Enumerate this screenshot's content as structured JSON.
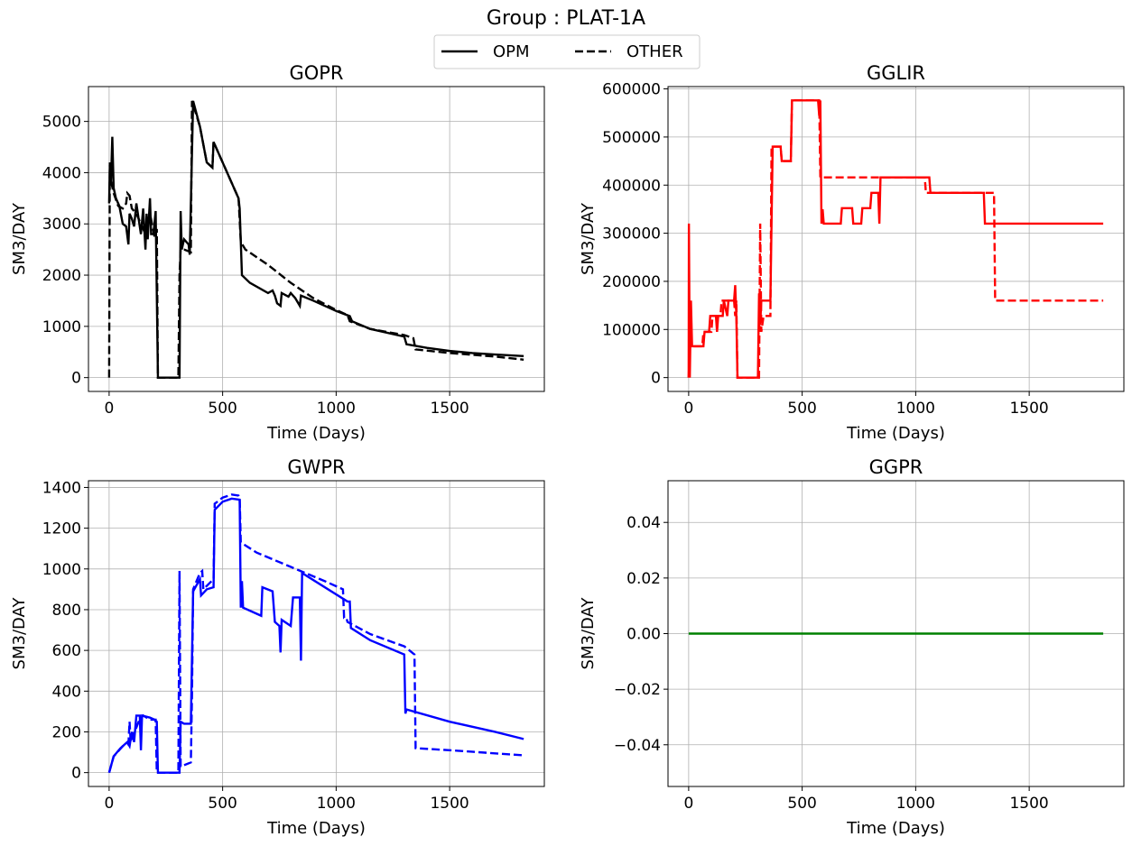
{
  "title": "Group : PLAT-1A",
  "chart_data": [
    {
      "type": "line",
      "title": "GOPR",
      "x_label": "Time (Days)",
      "y_label": "SM3/DAY",
      "xlim": [
        -91,
        1917
      ],
      "ylim": [
        -270,
        5680
      ],
      "xticks": [
        0,
        500,
        1000,
        1500
      ],
      "yticks": [
        0,
        1000,
        2000,
        3000,
        4000,
        5000
      ],
      "grid": true,
      "series": [
        {
          "name": "OPM",
          "color": "#000000",
          "dash": "solid",
          "x": [
            0,
            3,
            8,
            14,
            20,
            30,
            45,
            60,
            75,
            85,
            90,
            100,
            110,
            120,
            130,
            140,
            150,
            160,
            165,
            170,
            180,
            185,
            195,
            205,
            215,
            310,
            315,
            320,
            330,
            350,
            355,
            370,
            400,
            430,
            455,
            460,
            500,
            540,
            570,
            575,
            585,
            620,
            700,
            720,
            730,
            740,
            755,
            760,
            790,
            800,
            820,
            840,
            845,
            900,
            1000,
            1060,
            1070,
            1150,
            1300,
            1310,
            1400,
            1500,
            1600,
            1700,
            1826
          ],
          "values": [
            3400,
            4150,
            3800,
            4700,
            3700,
            3500,
            3350,
            3000,
            2950,
            2600,
            3200,
            3100,
            2950,
            3400,
            3100,
            2800,
            3300,
            2500,
            3200,
            2700,
            3500,
            2800,
            2800,
            3250,
            0,
            0,
            3250,
            2500,
            2700,
            2600,
            2400,
            5400,
            4900,
            4200,
            4100,
            4600,
            4200,
            3800,
            3500,
            3300,
            2000,
            1850,
            1650,
            1700,
            1600,
            1450,
            1400,
            1650,
            1580,
            1650,
            1550,
            1400,
            1600,
            1500,
            1300,
            1200,
            1100,
            950,
            800,
            650,
            580,
            520,
            480,
            450,
            420
          ]
        },
        {
          "name": "OTHER",
          "color": "#000000",
          "dash": "dashed",
          "x": [
            0,
            3,
            10,
            20,
            40,
            60,
            75,
            80,
            90,
            100,
            120,
            140,
            160,
            180,
            200,
            210,
            215,
            305,
            310,
            315,
            330,
            360,
            365,
            400,
            430,
            455,
            460,
            500,
            570,
            580,
            600,
            700,
            800,
            900,
            1000,
            1050,
            1060,
            1150,
            1300,
            1340,
            1350,
            1500,
            1700,
            1826
          ],
          "values": [
            0,
            4200,
            3800,
            3600,
            3350,
            3300,
            3400,
            3600,
            3550,
            3300,
            3200,
            3000,
            2800,
            3200,
            2750,
            2900,
            0,
            0,
            2000,
            2500,
            2500,
            2450,
            5400,
            4900,
            4200,
            4100,
            4600,
            4200,
            3500,
            2650,
            2500,
            2200,
            1850,
            1550,
            1320,
            1220,
            1100,
            950,
            830,
            770,
            550,
            480,
            410,
            350
          ]
        }
      ]
    },
    {
      "type": "line",
      "title": "GGLIR",
      "x_label": "Time (Days)",
      "y_label": "SM3/DAY",
      "xlim": [
        -91,
        1917
      ],
      "ylim": [
        -28800,
        604800
      ],
      "xticks": [
        0,
        500,
        1000,
        1500
      ],
      "yticks": [
        0,
        100000,
        200000,
        300000,
        400000,
        500000,
        600000
      ],
      "grid": true,
      "series": [
        {
          "name": "OPM",
          "color": "#ff0000",
          "dash": "solid",
          "x": [
            0,
            1,
            5,
            10,
            15,
            65,
            70,
            90,
            95,
            120,
            125,
            130,
            150,
            155,
            170,
            175,
            200,
            205,
            210,
            215,
            305,
            310,
            315,
            320,
            360,
            370,
            405,
            410,
            450,
            455,
            570,
            575,
            580,
            585,
            590,
            595,
            670,
            675,
            720,
            725,
            760,
            765,
            800,
            805,
            835,
            840,
            845,
            1060,
            1065,
            1300,
            1305,
            1826
          ],
          "values": [
            0,
            320000,
            0,
            160000,
            65000,
            65000,
            95000,
            95000,
            128000,
            128000,
            95000,
            128000,
            128000,
            160000,
            128000,
            160000,
            160000,
            192000,
            128000,
            0,
            0,
            175000,
            110000,
            160000,
            160000,
            480000,
            480000,
            450000,
            450000,
            576000,
            576000,
            544000,
            576000,
            320000,
            350000,
            320000,
            320000,
            352000,
            352000,
            320000,
            320000,
            352000,
            352000,
            384000,
            384000,
            320000,
            416000,
            416000,
            384000,
            384000,
            320000,
            320000
          ]
        },
        {
          "name": "OTHER",
          "color": "#ff0000",
          "dash": "dashed",
          "x": [
            0,
            5,
            60,
            65,
            100,
            105,
            140,
            145,
            200,
            205,
            210,
            215,
            310,
            315,
            320,
            330,
            360,
            365,
            405,
            410,
            450,
            455,
            575,
            580,
            1040,
            1045,
            1345,
            1350,
            1826
          ],
          "values": [
            0,
            65000,
            65000,
            95000,
            95000,
            128000,
            128000,
            160000,
            160000,
            128000,
            160000,
            0,
            0,
            320000,
            95000,
            128000,
            128000,
            480000,
            480000,
            450000,
            450000,
            576000,
            576000,
            416000,
            416000,
            384000,
            384000,
            160000,
            160000
          ]
        }
      ]
    },
    {
      "type": "line",
      "title": "GWPR",
      "x_label": "Time (Days)",
      "y_label": "SM3/DAY",
      "xlim": [
        -91,
        1917
      ],
      "ylim": [
        -68,
        1433
      ],
      "xticks": [
        0,
        500,
        1000,
        1500
      ],
      "yticks": [
        0,
        200,
        400,
        600,
        800,
        1000,
        1200,
        1400
      ],
      "grid": true,
      "series": [
        {
          "name": "OPM",
          "color": "#0000ff",
          "dash": "solid",
          "x": [
            0,
            20,
            50,
            80,
            90,
            100,
            110,
            120,
            135,
            140,
            145,
            180,
            200,
            210,
            215,
            310,
            315,
            330,
            360,
            370,
            400,
            405,
            430,
            460,
            465,
            500,
            540,
            575,
            580,
            585,
            590,
            650,
            670,
            675,
            720,
            730,
            750,
            755,
            760,
            800,
            810,
            840,
            845,
            850,
            1050,
            1060,
            1065,
            1150,
            1300,
            1305,
            1310,
            1500,
            1700,
            1826
          ],
          "values": [
            0,
            80,
            120,
            150,
            130,
            200,
            150,
            280,
            280,
            110,
            280,
            270,
            260,
            250,
            0,
            0,
            250,
            240,
            240,
            890,
            950,
            870,
            900,
            910,
            1290,
            1330,
            1345,
            1340,
            810,
            940,
            810,
            780,
            770,
            910,
            890,
            740,
            720,
            590,
            750,
            720,
            860,
            860,
            550,
            980,
            840,
            840,
            710,
            650,
            580,
            290,
            310,
            250,
            200,
            165
          ]
        },
        {
          "name": "OTHER",
          "color": "#0000ff",
          "dash": "dashed",
          "x": [
            0,
            20,
            60,
            85,
            90,
            95,
            130,
            150,
            180,
            205,
            210,
            305,
            310,
            315,
            360,
            365,
            370,
            400,
            410,
            415,
            460,
            465,
            500,
            540,
            570,
            575,
            580,
            650,
            800,
            950,
            1030,
            1035,
            1045,
            1050,
            1150,
            1300,
            1345,
            1350,
            1500,
            1826
          ],
          "values": [
            0,
            80,
            130,
            140,
            250,
            150,
            250,
            280,
            260,
            260,
            0,
            0,
            990,
            30,
            50,
            380,
            900,
            980,
            990,
            900,
            950,
            1320,
            1350,
            1365,
            1360,
            1350,
            1130,
            1080,
            1010,
            940,
            900,
            760,
            760,
            740,
            680,
            620,
            580,
            120,
            110,
            85
          ]
        }
      ]
    },
    {
      "type": "line",
      "title": "GGPR",
      "x_label": "Time (Days)",
      "y_label": "SM3/DAY",
      "xlim": [
        -91,
        1917
      ],
      "ylim": [
        -0.055,
        0.055
      ],
      "xticks": [
        0,
        500,
        1000,
        1500
      ],
      "yticks": [
        {
          "value": -0.04,
          "label": "−0.04"
        },
        {
          "value": -0.02,
          "label": "−0.02"
        },
        {
          "value": 0,
          "label": "0.00"
        },
        {
          "value": 0.02,
          "label": "0.02"
        },
        {
          "value": 0.04,
          "label": "0.04"
        }
      ],
      "grid": true,
      "series": [
        {
          "name": "OPM",
          "color": "#008000",
          "dash": "solid",
          "x": [
            0,
            1826
          ],
          "values": [
            0,
            0
          ]
        }
      ]
    }
  ]
}
